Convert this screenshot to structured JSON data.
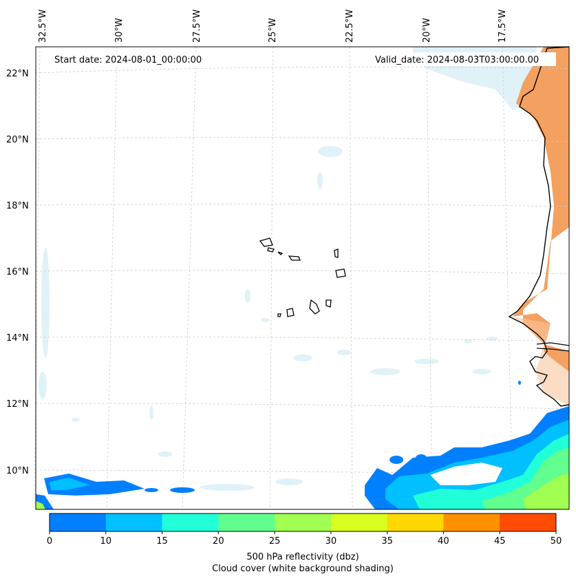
{
  "header": {
    "start_date": "Start date: 2024-08-01_00:00:00",
    "valid_date": "Valid_date: 2024-08-03T03:00:00.00"
  },
  "longitude_labels": [
    "32.5°W",
    "30°W",
    "27.5°W",
    "25°W",
    "22.5°W",
    "20°W",
    "17.5°W"
  ],
  "latitude_labels": [
    "22°N",
    "20°N",
    "18°N",
    "16°N",
    "14°N",
    "12°N",
    "10°N"
  ],
  "colorbar": {
    "ticks": [
      "0",
      "10",
      "15",
      "20",
      "25",
      "30",
      "35",
      "40",
      "45",
      "50"
    ],
    "colors": [
      "#0080ff",
      "#00c0ff",
      "#20ffd8",
      "#60ff90",
      "#a0ff50",
      "#d8ff20",
      "#ffd800",
      "#ff9000",
      "#ff4c00"
    ],
    "label": "500 hPa reflectivity (dbz)",
    "sublabel": "Cloud cover (white background shading)"
  },
  "colors": {
    "land_dust": "#f4a060",
    "cloud_shading": "#d6eef6",
    "coastline": "#000000",
    "grid": "#cccccc"
  }
}
